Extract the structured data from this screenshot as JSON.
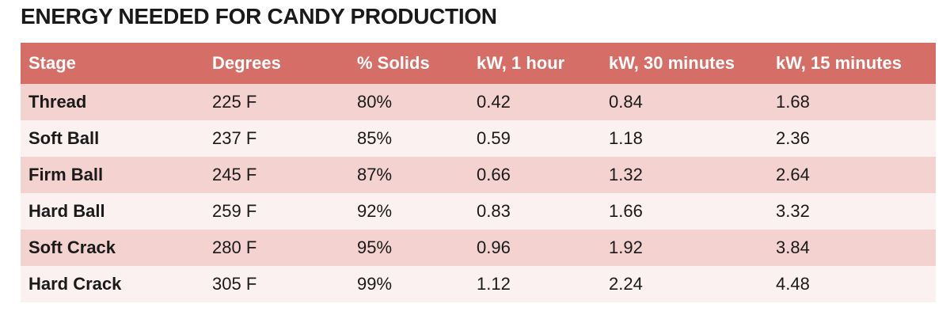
{
  "chart_data": {
    "type": "table",
    "title": "ENERGY NEEDED FOR CANDY PRODUCTION",
    "columns": [
      "Stage",
      "Degrees",
      "% Solids",
      "kW, 1 hour",
      "kW, 30 minutes",
      "kW, 15 minutes"
    ],
    "rows": [
      [
        "Thread",
        "225 F",
        "80%",
        "0.42",
        "0.84",
        "1.68"
      ],
      [
        "Soft Ball",
        "237 F",
        "85%",
        "0.59",
        "1.18",
        "2.36"
      ],
      [
        "Firm Ball",
        "245 F",
        "87%",
        "0.66",
        "1.32",
        "2.64"
      ],
      [
        "Hard Ball",
        "259 F",
        "92%",
        "0.83",
        "1.66",
        "3.32"
      ],
      [
        "Soft Crack",
        "280 F",
        "95%",
        "0.96",
        "1.92",
        "3.84"
      ],
      [
        "Hard Crack",
        "305 F",
        "99%",
        "1.12",
        "2.24",
        "4.48"
      ]
    ]
  },
  "colors": {
    "header_bg": "#d56e67",
    "row_odd": "#f3d2cf",
    "row_even": "#faf1f0"
  }
}
